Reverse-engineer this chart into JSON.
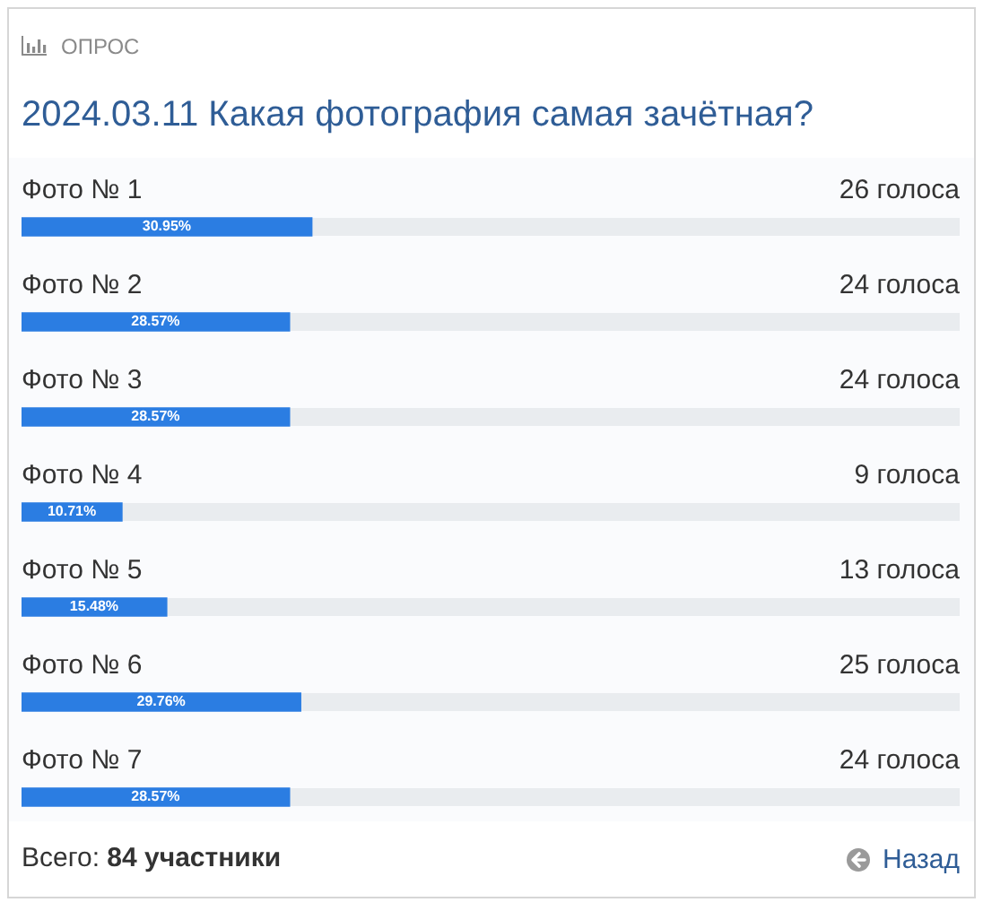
{
  "chart_data": {
    "type": "bar",
    "orientation": "horizontal",
    "title": "2024.03.11 Какая фотография самая зачётная?",
    "categories": [
      "Фото № 1",
      "Фото № 2",
      "Фото № 3",
      "Фото № 4",
      "Фото № 5",
      "Фото № 6",
      "Фото № 7"
    ],
    "values": [
      30.95,
      28.57,
      28.57,
      10.71,
      15.48,
      29.76,
      28.57
    ],
    "value_labels": [
      "30.95%",
      "28.57%",
      "28.57%",
      "10.71%",
      "15.48%",
      "29.76%",
      "28.57%"
    ],
    "color": "#2b7de2",
    "xlim": [
      0,
      100
    ],
    "tick_labels": "y",
    "annotations": [
      "ОПРОС",
      "26 голоса",
      "24 голоса",
      "24 голоса",
      "9 голоса",
      "13 голоса",
      "25 голоса",
      "24 голоса",
      "Всего: 84 участники",
      "Назад"
    ]
  }
}
